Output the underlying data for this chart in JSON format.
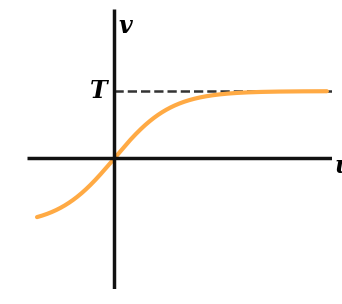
{
  "curve_color": "#FFAA44",
  "curve_linewidth": 3.0,
  "dashed_color": "#333333",
  "dashed_linewidth": 1.8,
  "axis_color": "#111111",
  "axis_linewidth": 2.5,
  "T_label": "T",
  "xlabel": "u",
  "ylabel": "v",
  "T_value": 0.72,
  "x_range": [
    -1.8,
    4.5
  ],
  "y_range": [
    -1.4,
    1.6
  ],
  "figsize": [
    3.42,
    3.04
  ],
  "dpi": 100,
  "font_size": 17,
  "bg_color": "#ffffff",
  "curve_x_start": -1.6,
  "curve_x_end": 4.4
}
